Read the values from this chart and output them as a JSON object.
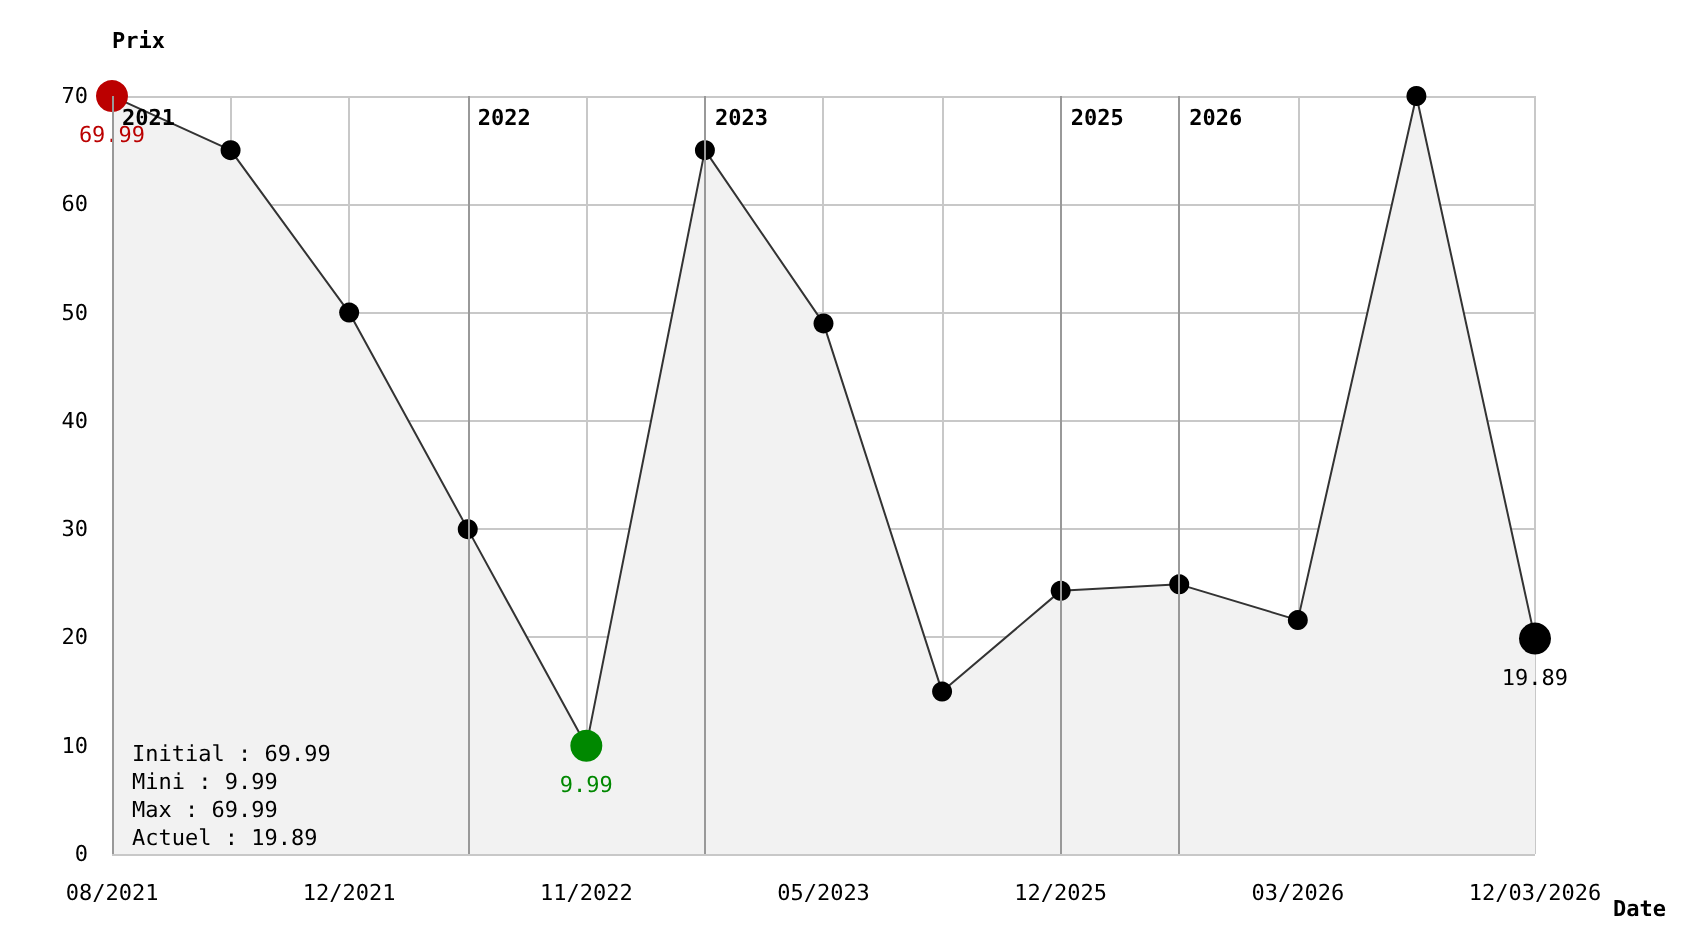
{
  "chart_data": {
    "type": "area",
    "ylabel": "Prix",
    "xlabel": "Date",
    "categories": [
      "08/2021",
      null,
      "12/2021",
      null,
      "11/2022",
      null,
      "05/2023",
      null,
      "12/2025",
      null,
      "03/2026",
      null,
      "12/03/2026"
    ],
    "values": [
      69.99,
      65,
      50,
      30,
      9.99,
      65,
      49,
      15,
      24.3,
      24.9,
      21.6,
      70,
      19.89
    ],
    "color": "#f2f2f2",
    "colors": [
      "#bb0000",
      "#000000",
      "#000000",
      "#000000",
      "#008800",
      "#000000",
      "#000000",
      "#000000",
      "#000000",
      "#000000",
      "#000000",
      "#000000",
      "#000000"
    ],
    "value_labels": [
      "69.99",
      null,
      null,
      null,
      "9.99",
      null,
      null,
      null,
      null,
      null,
      null,
      null,
      "19.89"
    ],
    "ylim": [
      0,
      70
    ],
    "yticks": [
      0,
      10,
      20,
      30,
      40,
      50,
      60,
      70
    ],
    "annotations": [
      "Initial : 69.99",
      "Mini : 9.99",
      "Max : 69.99",
      "Actuel : 19.89",
      "2021",
      "2022",
      "2023",
      "2025",
      "2026"
    ],
    "grid": true,
    "marker": "circle",
    "line_style": "solid"
  }
}
